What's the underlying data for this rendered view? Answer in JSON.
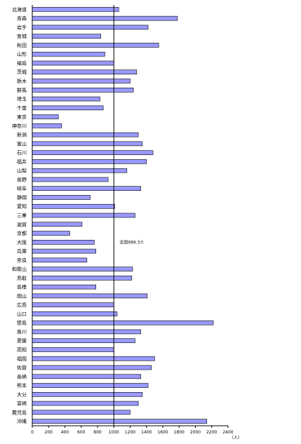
{
  "chart_data": {
    "type": "bar",
    "orientation": "horizontal",
    "categories": [
      "北海道",
      "青森",
      "岩手",
      "宮城",
      "秋田",
      "山形",
      "福島",
      "茨城",
      "栃木",
      "群馬",
      "埼玉",
      "千葉",
      "東京",
      "神奈川",
      "新潟",
      "富山",
      "石川",
      "福井",
      "山梨",
      "長野",
      "岐阜",
      "静岡",
      "愛知",
      "三重",
      "滋賀",
      "京都",
      "大阪",
      "兵庫",
      "奈良",
      "和歌山",
      "鳥取",
      "島根",
      "岡山",
      "広島",
      "山口",
      "徳島",
      "香川",
      "愛媛",
      "高知",
      "福岡",
      "佐賀",
      "長崎",
      "熊本",
      "大分",
      "宮崎",
      "鹿児島",
      "沖縄"
    ],
    "values": [
      1060,
      1780,
      1420,
      840,
      1550,
      890,
      1000,
      1280,
      1200,
      1240,
      830,
      870,
      320,
      360,
      1300,
      1350,
      1480,
      1400,
      1160,
      930,
      1330,
      710,
      1010,
      1260,
      610,
      460,
      760,
      780,
      670,
      1230,
      1220,
      780,
      1410,
      1000,
      1040,
      2220,
      1330,
      1260,
      1000,
      1500,
      1460,
      1330,
      1420,
      1350,
      1300,
      1200,
      2140
    ],
    "xlim": [
      0,
      2400
    ],
    "xticks": [
      0,
      200,
      400,
      600,
      800,
      1000,
      1200,
      1400,
      1600,
      1800,
      2000,
      2200,
      2400
    ],
    "xunit": "（人）",
    "reference_value": 1000,
    "annotation": "全国999.3人",
    "grid": false,
    "bar_color": "#9999ff"
  }
}
